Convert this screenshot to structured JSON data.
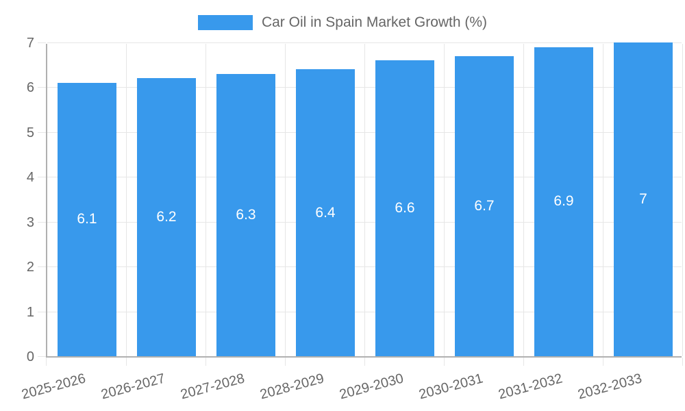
{
  "colors": {
    "bar": "#3899ec",
    "axis": "#b0b0b0",
    "grid": "#e6e6e6",
    "tick_text": "#666666",
    "title_text": "#666666",
    "bar_label": "#ffffff"
  },
  "legend": {
    "label": "Car Oil in Spain Market Growth (%)"
  },
  "chart_data": {
    "type": "bar",
    "title": "Car Oil in Spain Market Growth (%)",
    "categories": [
      "2025-2026",
      "2026-2027",
      "2027-2028",
      "2028-2029",
      "2029-2030",
      "2030-2031",
      "2031-2032",
      "2032-2033"
    ],
    "values": [
      6.1,
      6.2,
      6.3,
      6.4,
      6.6,
      6.7,
      6.9,
      7
    ],
    "bar_labels": [
      "6.1",
      "6.2",
      "6.3",
      "6.4",
      "6.6",
      "6.7",
      "6.9",
      "7"
    ],
    "xlabel": "",
    "ylabel": "",
    "ylim": [
      0,
      7
    ],
    "yticks": [
      0,
      1,
      2,
      3,
      4,
      5,
      6,
      7
    ],
    "grid": true,
    "legend_position": "top",
    "bar_color": "#3899ec",
    "value_label_position": "center-inside",
    "value_label_color": "#ffffff"
  }
}
